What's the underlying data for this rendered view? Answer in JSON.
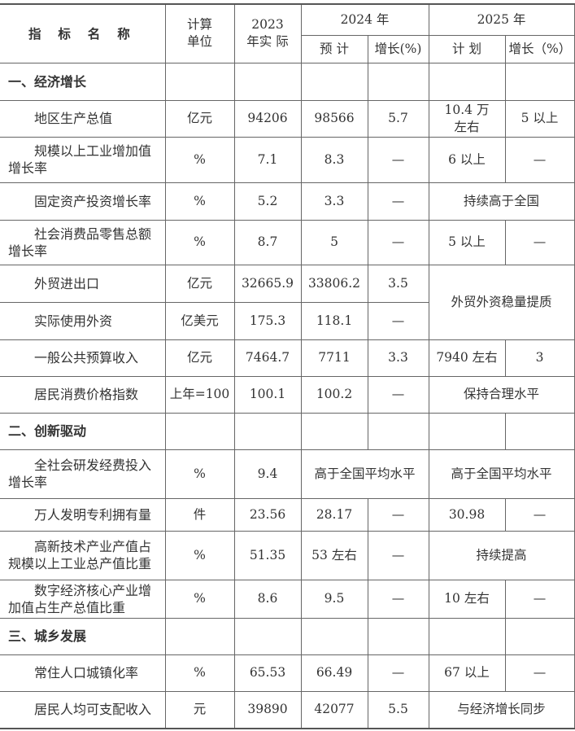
{
  "header": {
    "indicator": "指 标 名 称",
    "unit": "计算单位",
    "y2023": "2023 年实 际",
    "y2024": "2024 年",
    "y2024_est": "预 计",
    "y2024_growth": "增长(%)",
    "y2025": "2025 年",
    "y2025_plan": "计 划",
    "y2025_growth": "增长（%）"
  },
  "sections": [
    {
      "title": "一、经济增长"
    },
    {
      "title": "二、创新驱动"
    },
    {
      "title": "三、城乡发展"
    }
  ],
  "rows": [
    {
      "name": "地区生产总值",
      "unit": "亿元",
      "actual_2023": "94206",
      "est_2024": "98566",
      "growth_2024": "5.7",
      "plan_2025": "10.4 万左右",
      "growth_2025": "5 以上"
    },
    {
      "name": "规模以上工业增加值增长率",
      "unit": "%",
      "actual_2023": "7.1",
      "est_2024": "8.3",
      "growth_2024": "—",
      "plan_2025": "6 以上",
      "growth_2025": "—"
    },
    {
      "name": "固定资产投资增长率",
      "unit": "%",
      "actual_2023": "5.2",
      "est_2024": "3.3",
      "growth_2024": "—",
      "plan_2025": "持续高于全国"
    },
    {
      "name": "社会消费品零售总额增长率",
      "unit": "%",
      "actual_2023": "8.7",
      "est_2024": "5",
      "growth_2024": "—",
      "plan_2025": "5 以上",
      "growth_2025": "—"
    },
    {
      "name": "外贸进出口",
      "unit": "亿元",
      "actual_2023": "32665.9",
      "est_2024": "33806.2",
      "growth_2024": "3.5",
      "plan_2025": "外贸外资稳量提质"
    },
    {
      "name": "实际使用外资",
      "unit": "亿美元",
      "actual_2023": "175.3",
      "est_2024": "118.1",
      "growth_2024": "—"
    },
    {
      "name": "一般公共预算收入",
      "unit": "亿元",
      "actual_2023": "7464.7",
      "est_2024": "7711",
      "growth_2024": "3.3",
      "plan_2025": "7940 左右",
      "growth_2025": "3"
    },
    {
      "name": "居民消费价格指数",
      "unit": "上年=100",
      "actual_2023": "100.1",
      "est_2024": "100.2",
      "growth_2024": "—",
      "plan_2025": "保持合理水平"
    },
    {
      "name": "全社会研发经费投入增长率",
      "unit": "%",
      "actual_2023": "9.4",
      "est_2024": "高于全国平均水平",
      "plan_2025": "高于全国平均水平"
    },
    {
      "name": "万人发明专利拥有量",
      "unit": "件",
      "actual_2023": "23.56",
      "est_2024": "28.17",
      "growth_2024": "—",
      "plan_2025": "30.98",
      "growth_2025": "—"
    },
    {
      "name": "高新技术产业产值占规模以上工业总产值比重",
      "unit": "%",
      "actual_2023": "51.35",
      "est_2024": "53 左右",
      "growth_2024": "—",
      "plan_2025": "持续提高"
    },
    {
      "name": "数字经济核心产业增加值占生产总值比重",
      "unit": "%",
      "actual_2023": "8.6",
      "est_2024": "9.5",
      "growth_2024": "—",
      "plan_2025": "10 左右",
      "growth_2025": "—"
    },
    {
      "name": "常住人口城镇化率",
      "unit": "%",
      "actual_2023": "65.53",
      "est_2024": "66.49",
      "growth_2024": "—",
      "plan_2025": "67 以上",
      "growth_2025": "—"
    },
    {
      "name": "居民人均可支配收入",
      "unit": "元",
      "actual_2023": "39890",
      "est_2024": "42077",
      "growth_2024": "5.5",
      "plan_2025": "与经济增长同步"
    }
  ]
}
